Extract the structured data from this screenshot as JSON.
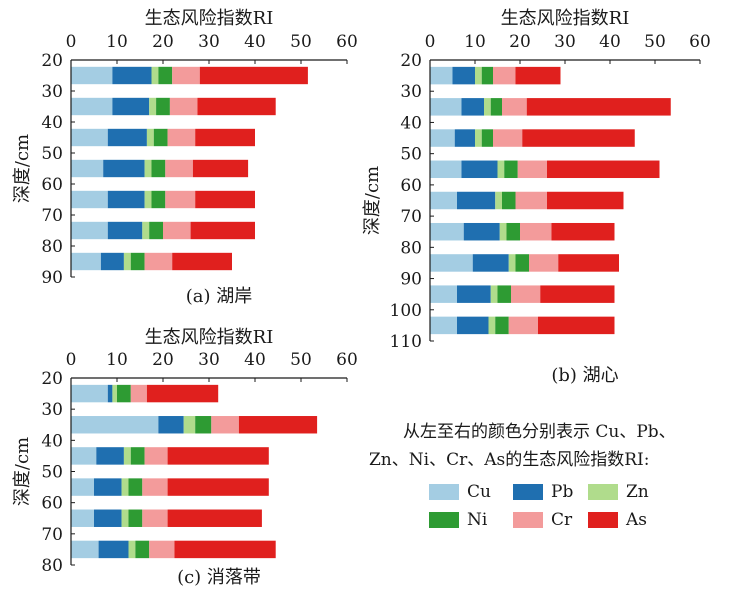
{
  "chart_data": [
    {
      "type": "bar",
      "orientation": "horizontal",
      "stacked": true,
      "title": "生态风险指数RI",
      "caption": "(a) 湖岸",
      "xlabel": "",
      "ylabel": "深度/cm",
      "xlim": [
        0,
        60
      ],
      "xticks": [
        0,
        10,
        20,
        30,
        40,
        50,
        60
      ],
      "yticks": [
        20,
        30,
        40,
        50,
        60,
        70,
        80,
        90
      ],
      "ylim": [
        20,
        90
      ],
      "depths": [
        25,
        35,
        45,
        55,
        65,
        75,
        85
      ],
      "series": [
        {
          "name": "Cu",
          "values": [
            9.0,
            9.0,
            8.0,
            7.0,
            8.0,
            8.0,
            6.5
          ]
        },
        {
          "name": "Pb",
          "values": [
            8.5,
            8.0,
            8.5,
            9.0,
            8.0,
            7.5,
            5.0
          ]
        },
        {
          "name": "Zn",
          "values": [
            1.5,
            1.5,
            1.5,
            1.5,
            1.5,
            1.5,
            1.5
          ]
        },
        {
          "name": "Ni",
          "values": [
            3.0,
            3.0,
            3.0,
            3.0,
            3.0,
            3.0,
            3.0
          ]
        },
        {
          "name": "Cr",
          "values": [
            6.0,
            6.0,
            6.0,
            6.0,
            6.5,
            6.0,
            6.0
          ]
        },
        {
          "name": "As",
          "values": [
            23.5,
            17.0,
            13.0,
            12.0,
            13.0,
            14.0,
            13.0
          ]
        }
      ]
    },
    {
      "type": "bar",
      "orientation": "horizontal",
      "stacked": true,
      "title": "生态风险指数RI",
      "caption": "(b) 湖心",
      "xlabel": "",
      "ylabel": "深度/cm",
      "xlim": [
        0,
        60
      ],
      "xticks": [
        0,
        10,
        20,
        30,
        40,
        50,
        60
      ],
      "yticks": [
        20,
        30,
        40,
        50,
        60,
        70,
        80,
        90,
        100,
        110
      ],
      "ylim": [
        20,
        110
      ],
      "depths": [
        25,
        35,
        45,
        55,
        65,
        75,
        85,
        95,
        105
      ],
      "series": [
        {
          "name": "Cu",
          "values": [
            5.0,
            7.0,
            5.5,
            7.0,
            6.0,
            7.5,
            9.5,
            6.0,
            6.0
          ]
        },
        {
          "name": "Pb",
          "values": [
            5.0,
            5.0,
            4.5,
            8.0,
            8.5,
            8.0,
            8.0,
            7.5,
            7.0
          ]
        },
        {
          "name": "Zn",
          "values": [
            1.5,
            1.5,
            1.5,
            1.5,
            1.5,
            1.5,
            1.5,
            1.5,
            1.5
          ]
        },
        {
          "name": "Ni",
          "values": [
            2.5,
            2.5,
            2.5,
            3.0,
            3.0,
            3.0,
            3.0,
            3.0,
            3.0
          ]
        },
        {
          "name": "Cr",
          "values": [
            5.0,
            5.5,
            6.5,
            6.5,
            7.0,
            7.0,
            6.5,
            6.5,
            6.5
          ]
        },
        {
          "name": "As",
          "values": [
            10.0,
            32.0,
            25.0,
            25.0,
            17.0,
            14.0,
            13.5,
            16.5,
            17.0
          ]
        }
      ]
    },
    {
      "type": "bar",
      "orientation": "horizontal",
      "stacked": true,
      "title": "生态风险指数RI",
      "caption": "(c) 消落带",
      "xlabel": "",
      "ylabel": "深度/cm",
      "xlim": [
        0,
        60
      ],
      "xticks": [
        0,
        10,
        20,
        30,
        40,
        50,
        60
      ],
      "yticks": [
        20,
        30,
        40,
        50,
        60,
        70,
        80
      ],
      "ylim": [
        20,
        80
      ],
      "depths": [
        25,
        35,
        45,
        55,
        65,
        75
      ],
      "series": [
        {
          "name": "Cu",
          "values": [
            8.0,
            19.0,
            5.5,
            5.0,
            5.0,
            6.0
          ]
        },
        {
          "name": "Pb",
          "values": [
            1.0,
            5.5,
            6.0,
            6.0,
            6.0,
            6.5
          ]
        },
        {
          "name": "Zn",
          "values": [
            1.0,
            2.5,
            1.5,
            1.5,
            1.5,
            1.5
          ]
        },
        {
          "name": "Ni",
          "values": [
            3.0,
            3.5,
            3.0,
            3.0,
            3.0,
            3.0
          ]
        },
        {
          "name": "Cr",
          "values": [
            3.5,
            6.0,
            5.0,
            5.5,
            5.5,
            5.5
          ]
        },
        {
          "name": "As",
          "values": [
            15.5,
            17.0,
            22.0,
            22.0,
            20.5,
            22.0
          ]
        }
      ]
    }
  ],
  "legend": {
    "line1": "从左至右的颜色分别表示  Cu、Pb、",
    "line2": "Zn、Ni、Cr、As的生态风险指数RI:",
    "items": [
      {
        "name": "Cu",
        "color": "#a4cde3"
      },
      {
        "name": "Pb",
        "color": "#1f6fb0"
      },
      {
        "name": "Zn",
        "color": "#b0dc8c"
      },
      {
        "name": "Ni",
        "color": "#2e9b33"
      },
      {
        "name": "Cr",
        "color": "#f39b9b"
      },
      {
        "name": "As",
        "color": "#e0201e"
      }
    ]
  }
}
